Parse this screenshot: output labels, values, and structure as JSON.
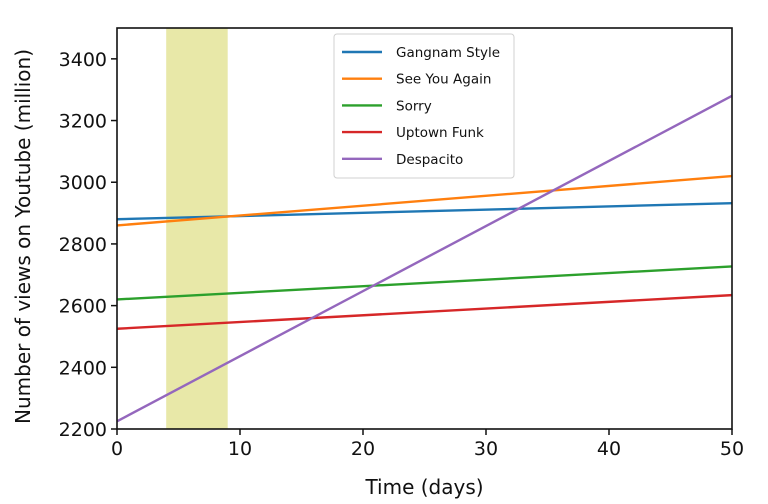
{
  "chart_data": {
    "type": "line",
    "title": "",
    "xlabel": "Time (days)",
    "ylabel": "Number of views on Youtube (million)",
    "xlim": [
      0,
      50
    ],
    "ylim": [
      2200,
      3500
    ],
    "xticks": [
      0,
      10,
      20,
      30,
      40,
      50
    ],
    "yticks": [
      2200,
      2400,
      2600,
      2800,
      3000,
      3200,
      3400
    ],
    "grid": false,
    "legend_position": "top-center",
    "highlight_span": {
      "x_start": 4,
      "x_end": 9,
      "color": "#e8e8a8"
    },
    "x": [
      0,
      50
    ],
    "series": [
      {
        "name": "Gangnam Style",
        "color": "#1f77b4",
        "values": [
          2880,
          2932
        ]
      },
      {
        "name": "See You Again",
        "color": "#ff7f0e",
        "values": [
          2860,
          3020
        ]
      },
      {
        "name": "Sorry",
        "color": "#2ca02c",
        "values": [
          2620,
          2727
        ]
      },
      {
        "name": "Uptown Funk",
        "color": "#d62728",
        "values": [
          2525,
          2634
        ]
      },
      {
        "name": "Despacito",
        "color": "#9467bd",
        "values": [
          2225,
          3280
        ]
      }
    ]
  }
}
